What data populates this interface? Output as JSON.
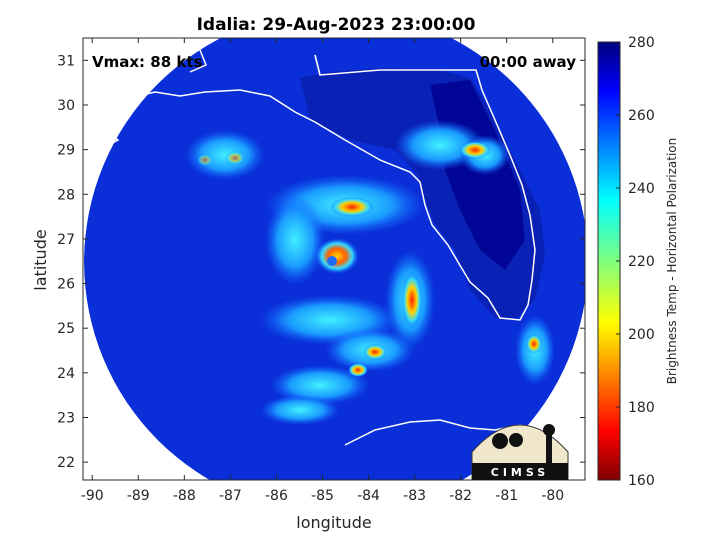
{
  "title": "Idalia: 29-Aug-2023 23:00:00",
  "annotations": {
    "vmax": "Vmax: 88 kts",
    "time_away": "00:00 away"
  },
  "axes": {
    "xlabel": "longitude",
    "ylabel": "latitude",
    "xlim": [
      -90.2,
      -79.3
    ],
    "ylim": [
      21.6,
      31.5
    ],
    "xticks": [
      -90,
      -89,
      -88,
      -87,
      -86,
      -85,
      -84,
      -83,
      -82,
      -81,
      -80
    ],
    "yticks": [
      22,
      23,
      24,
      25,
      26,
      27,
      28,
      29,
      30,
      31
    ]
  },
  "colorbar": {
    "label": "Brightness Temp - Horizontal Polarization",
    "range": [
      160,
      280
    ],
    "ticks": [
      160,
      180,
      200,
      220,
      240,
      260,
      280
    ],
    "colormap": "jet"
  },
  "storm_center": {
    "lon": -84.8,
    "lat": 26.7
  },
  "swath_center": {
    "lon": -84.7,
    "lat": 26.4
  },
  "logo": {
    "text": "CIMSS"
  },
  "colors": {
    "background_field": "#0a2fd8",
    "coast_outline": "#ffffff",
    "land_dark": "#00008f"
  }
}
